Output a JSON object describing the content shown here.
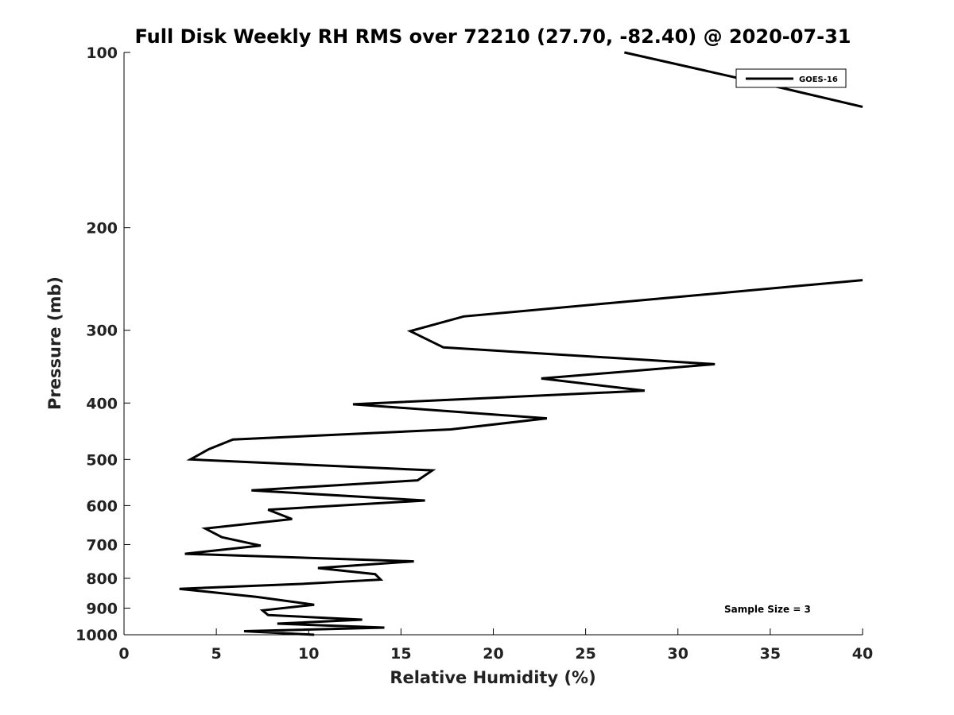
{
  "chart_data": {
    "type": "line",
    "title": "Full Disk Weekly RH RMS over 72210 (27.70, -82.40) @ 2020-07-31",
    "xlabel": "Relative Humidity (%)",
    "ylabel": "Pressure (mb)",
    "xlim": [
      0,
      40
    ],
    "ylim": [
      1000,
      100
    ],
    "yscale": "log",
    "xticks": [
      0,
      5,
      10,
      15,
      20,
      25,
      30,
      35,
      40
    ],
    "yticks": [
      100,
      200,
      300,
      400,
      500,
      600,
      700,
      800,
      900,
      1000
    ],
    "grid": false,
    "legend_position": "top-right",
    "annotation": "Sample Size = 3",
    "series": [
      {
        "name": "GOES-16",
        "color": "#000000",
        "segments": [
          [
            [
              27.1,
              100
            ],
            [
              35.6,
              115
            ],
            [
              40,
              124
            ]
          ],
          [
            [
              40,
              246
            ],
            [
              18.4,
              284
            ],
            [
              15.5,
              301
            ],
            [
              17.3,
              321
            ],
            [
              32.0,
              343
            ],
            [
              22.6,
              363
            ],
            [
              28.2,
              381
            ],
            [
              12.4,
              402
            ],
            [
              22.9,
              425
            ],
            [
              17.7,
              444
            ],
            [
              5.9,
              462
            ],
            [
              4.6,
              480
            ],
            [
              3.6,
              500
            ],
            [
              16.7,
              522
            ],
            [
              15.9,
              543
            ],
            [
              6.9,
              565
            ],
            [
              16.3,
              588
            ],
            [
              7.8,
              610
            ],
            [
              9.1,
              633
            ],
            [
              4.4,
              657
            ],
            [
              5.3,
              680
            ],
            [
              7.4,
              703
            ],
            [
              3.3,
              726
            ],
            [
              15.7,
              748
            ],
            [
              10.5,
              768
            ],
            [
              13.6,
              787
            ],
            [
              13.9,
              804
            ],
            [
              9.6,
              818
            ],
            [
              3.0,
              834
            ],
            [
              7.2,
              861
            ],
            [
              10.3,
              888
            ],
            [
              7.5,
              908
            ],
            [
              7.8,
              925
            ],
            [
              12.9,
              942
            ],
            [
              8.3,
              957
            ],
            [
              14.1,
              972
            ],
            [
              6.5,
              986
            ],
            [
              10.3,
              1000
            ]
          ]
        ]
      }
    ]
  }
}
